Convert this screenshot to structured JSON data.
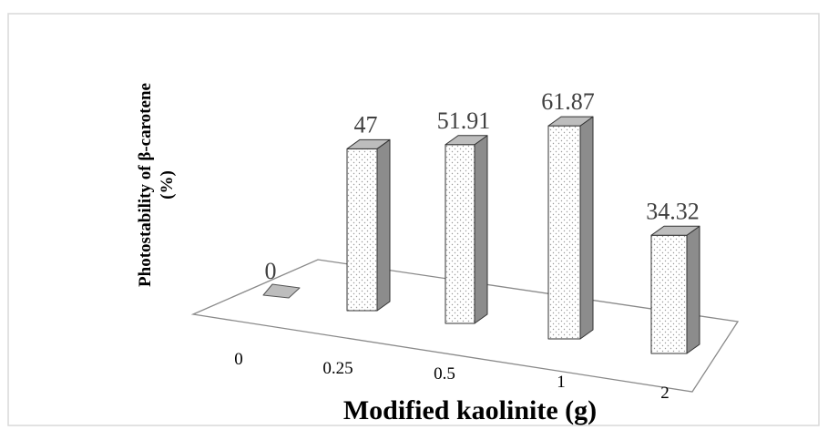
{
  "chart_data": {
    "type": "bar",
    "style": "3d-bar",
    "categories": [
      "0",
      "0.25",
      "0.5",
      "1",
      "2"
    ],
    "values": [
      0,
      47,
      51.91,
      61.87,
      34.32
    ],
    "data_labels": [
      "0",
      "47",
      "51.91",
      "61.87",
      "34.32"
    ],
    "xlabel": "Modified kaolinite (g)",
    "ylabel_line1": "Photostability of  β-carotene",
    "ylabel_line2": "(%)",
    "ylim": [
      0,
      70
    ],
    "grid": false,
    "legend": "none"
  },
  "colors": {
    "bar_front": "#ffffff",
    "bar_dots": "#9a9a9a",
    "bar_side": "#8c8c8c",
    "bar_top": "#bdbdbd",
    "floor_stroke": "#8a8a8a",
    "frame_stroke": "#d9d9d9"
  }
}
